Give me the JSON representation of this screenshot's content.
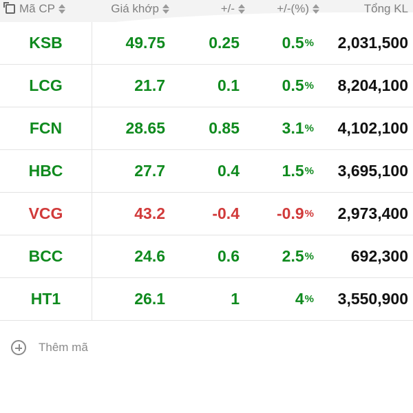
{
  "header": {
    "code_label": "Mã CP",
    "price_label": "Giá khớp",
    "change_label": "+/-",
    "pct_label": "+/-(%)",
    "volume_label": "Tổng KL"
  },
  "rows": [
    {
      "code": "KSB",
      "price": "49.75",
      "change": "0.25",
      "pct": "0.5",
      "volume": "2,031,500",
      "dir": "up"
    },
    {
      "code": "LCG",
      "price": "21.7",
      "change": "0.1",
      "pct": "0.5",
      "volume": "8,204,100",
      "dir": "up"
    },
    {
      "code": "FCN",
      "price": "28.65",
      "change": "0.85",
      "pct": "3.1",
      "volume": "4,102,100",
      "dir": "up"
    },
    {
      "code": "HBC",
      "price": "27.7",
      "change": "0.4",
      "pct": "1.5",
      "volume": "3,695,100",
      "dir": "up"
    },
    {
      "code": "VCG",
      "price": "43.2",
      "change": "-0.4",
      "pct": "-0.9",
      "volume": "2,973,400",
      "dir": "down"
    },
    {
      "code": "BCC",
      "price": "24.6",
      "change": "0.6",
      "pct": "2.5",
      "volume": "692,300",
      "dir": "up"
    },
    {
      "code": "HT1",
      "price": "26.1",
      "change": "1",
      "pct": "4",
      "volume": "3,550,900",
      "dir": "up"
    }
  ],
  "pct_suffix": "%",
  "add_label": "Thêm mã",
  "colors": {
    "up": "#0f8a1e",
    "down": "#d13a3a"
  }
}
